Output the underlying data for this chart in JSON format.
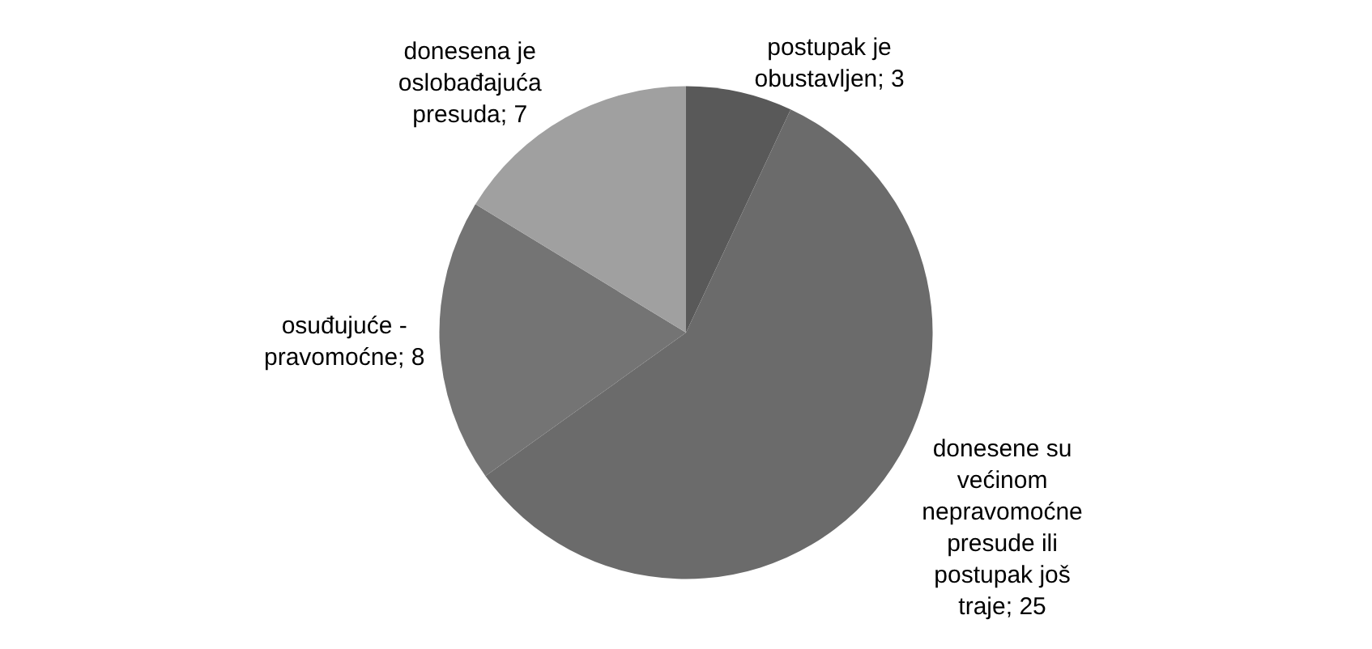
{
  "chart_data": {
    "type": "pie",
    "categories": [
      "postupak je obustavljen",
      "donesene su većinom nepravomoćne presude ili postupak još traje",
      "osuđujuće - pravomoćne",
      "donesena je oslobađajuća presuda"
    ],
    "values": [
      3,
      25,
      8,
      7
    ],
    "colors": [
      "#595959",
      "#6b6b6b",
      "#747474",
      "#a0a0a0"
    ],
    "value_labels": [
      "; 3",
      "; 25",
      "; 8",
      "; 7"
    ],
    "legend": false
  }
}
